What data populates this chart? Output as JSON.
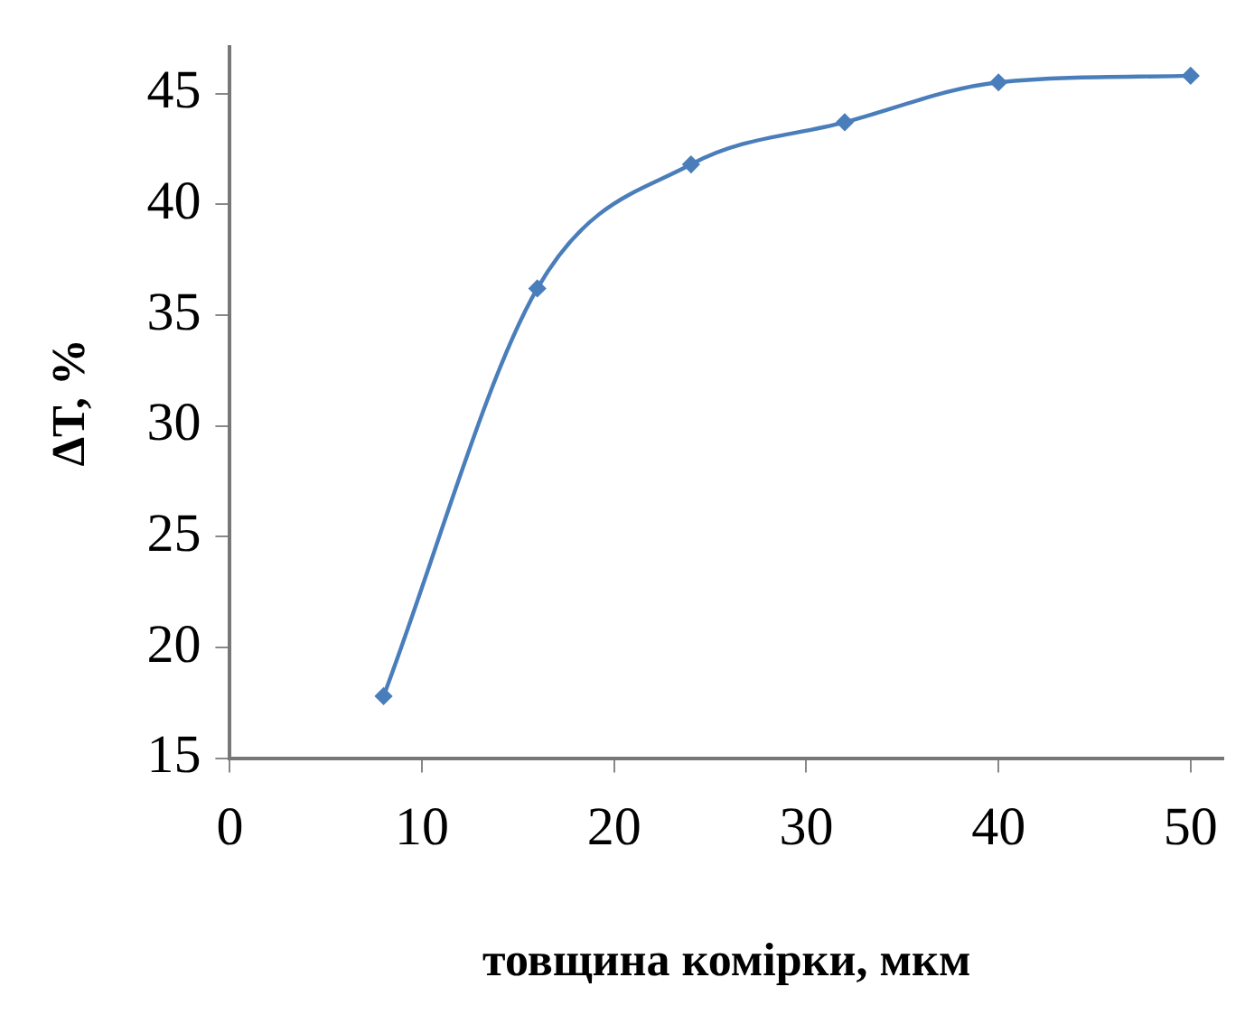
{
  "chart_data": {
    "type": "line",
    "xlabel": "товщина комірки, мкм",
    "ylabel": "ΔT, %",
    "x": [
      8,
      16,
      24,
      32,
      40,
      50
    ],
    "series": [
      {
        "color": "#4a7ebb",
        "values": [
          17.8,
          36.2,
          41.8,
          43.7,
          45.5,
          45.8
        ]
      }
    ],
    "xlim": [
      0,
      51.7
    ],
    "xticks": [
      0,
      10,
      20,
      30,
      40,
      50
    ],
    "ylim": [
      15,
      47.1
    ],
    "yticks": [
      15,
      20,
      25,
      30,
      35,
      40,
      45
    ],
    "marker": "diamond",
    "line_style": "solid",
    "grid": false,
    "legend": false
  }
}
